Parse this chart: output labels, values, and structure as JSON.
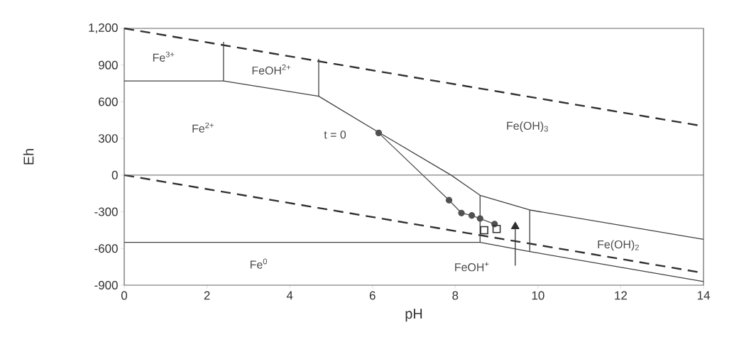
{
  "chart_data": {
    "type": "line",
    "xlabel": "pH",
    "ylabel": "Eh",
    "xlim": [
      0,
      14
    ],
    "xticks": [
      0,
      2,
      4,
      6,
      8,
      10,
      12,
      14
    ],
    "ylim": [
      -900,
      1200
    ],
    "yticks": [
      -900,
      -600,
      -300,
      0,
      300,
      600,
      900,
      {
        "value": 1200,
        "label": "1,200"
      }
    ],
    "grid": false,
    "ref_lines": [
      {
        "axis": "y",
        "value": 0,
        "color": "#606060"
      }
    ],
    "series": [
      {
        "x": [
          0,
          14
        ],
        "values": [
          1200,
          400
        ],
        "color": "#303030",
        "line_style": "dashed"
      },
      {
        "x": [
          0,
          14
        ],
        "values": [
          0,
          -800
        ],
        "color": "#303030",
        "line_style": "dashed"
      },
      {
        "x": [
          0,
          2.4,
          4.7,
          6.2,
          7.9,
          8.6,
          9.8,
          14
        ],
        "values": [
          770,
          770,
          645,
          340,
          0,
          -165,
          -285,
          -525
        ],
        "color": "#404040",
        "line_style": "solid"
      },
      {
        "x": [
          2.4,
          2.4
        ],
        "values": [
          770,
          1090
        ],
        "color": "#404040",
        "line_style": "solid"
      },
      {
        "x": [
          4.7,
          4.7
        ],
        "values": [
          645,
          950
        ],
        "color": "#404040",
        "line_style": "solid"
      },
      {
        "x": [
          0,
          8.6,
          9.8,
          14
        ],
        "values": [
          -550,
          -550,
          -625,
          -870
        ],
        "color": "#404040",
        "line_style": "solid"
      },
      {
        "x": [
          8.6,
          8.6
        ],
        "values": [
          -165,
          -550
        ],
        "color": "#404040",
        "line_style": "solid"
      },
      {
        "x": [
          9.8,
          9.8
        ],
        "values": [
          -285,
          -625
        ],
        "color": "#404040",
        "line_style": "solid"
      },
      {
        "x": [
          6.15,
          7.85,
          8.15,
          8.4,
          8.6,
          8.95
        ],
        "values": [
          345,
          -205,
          -310,
          -330,
          -355,
          -400
        ],
        "color": "#505050",
        "line_style": "solid",
        "marker": "circle"
      },
      {
        "type": "scatter",
        "x": [
          8.7,
          9.0
        ],
        "values": [
          -450,
          -440
        ],
        "color": "#303030",
        "marker": "square"
      },
      {
        "x": [
          9.45,
          9.45
        ],
        "values": [
          -740,
          -420
        ],
        "color": "#303030",
        "line_style": "solid",
        "marker": "triangle"
      }
    ],
    "annotations": [
      "Fe$^{3+}$",
      "FeOH$^{2+}$",
      "Fe$^{2+}$",
      "t = 0",
      "Fe(OH)$_{3}$",
      "Fe$^{0}$",
      "FeOH$^{+}$",
      "Fe(OH)$_{2}$"
    ]
  }
}
